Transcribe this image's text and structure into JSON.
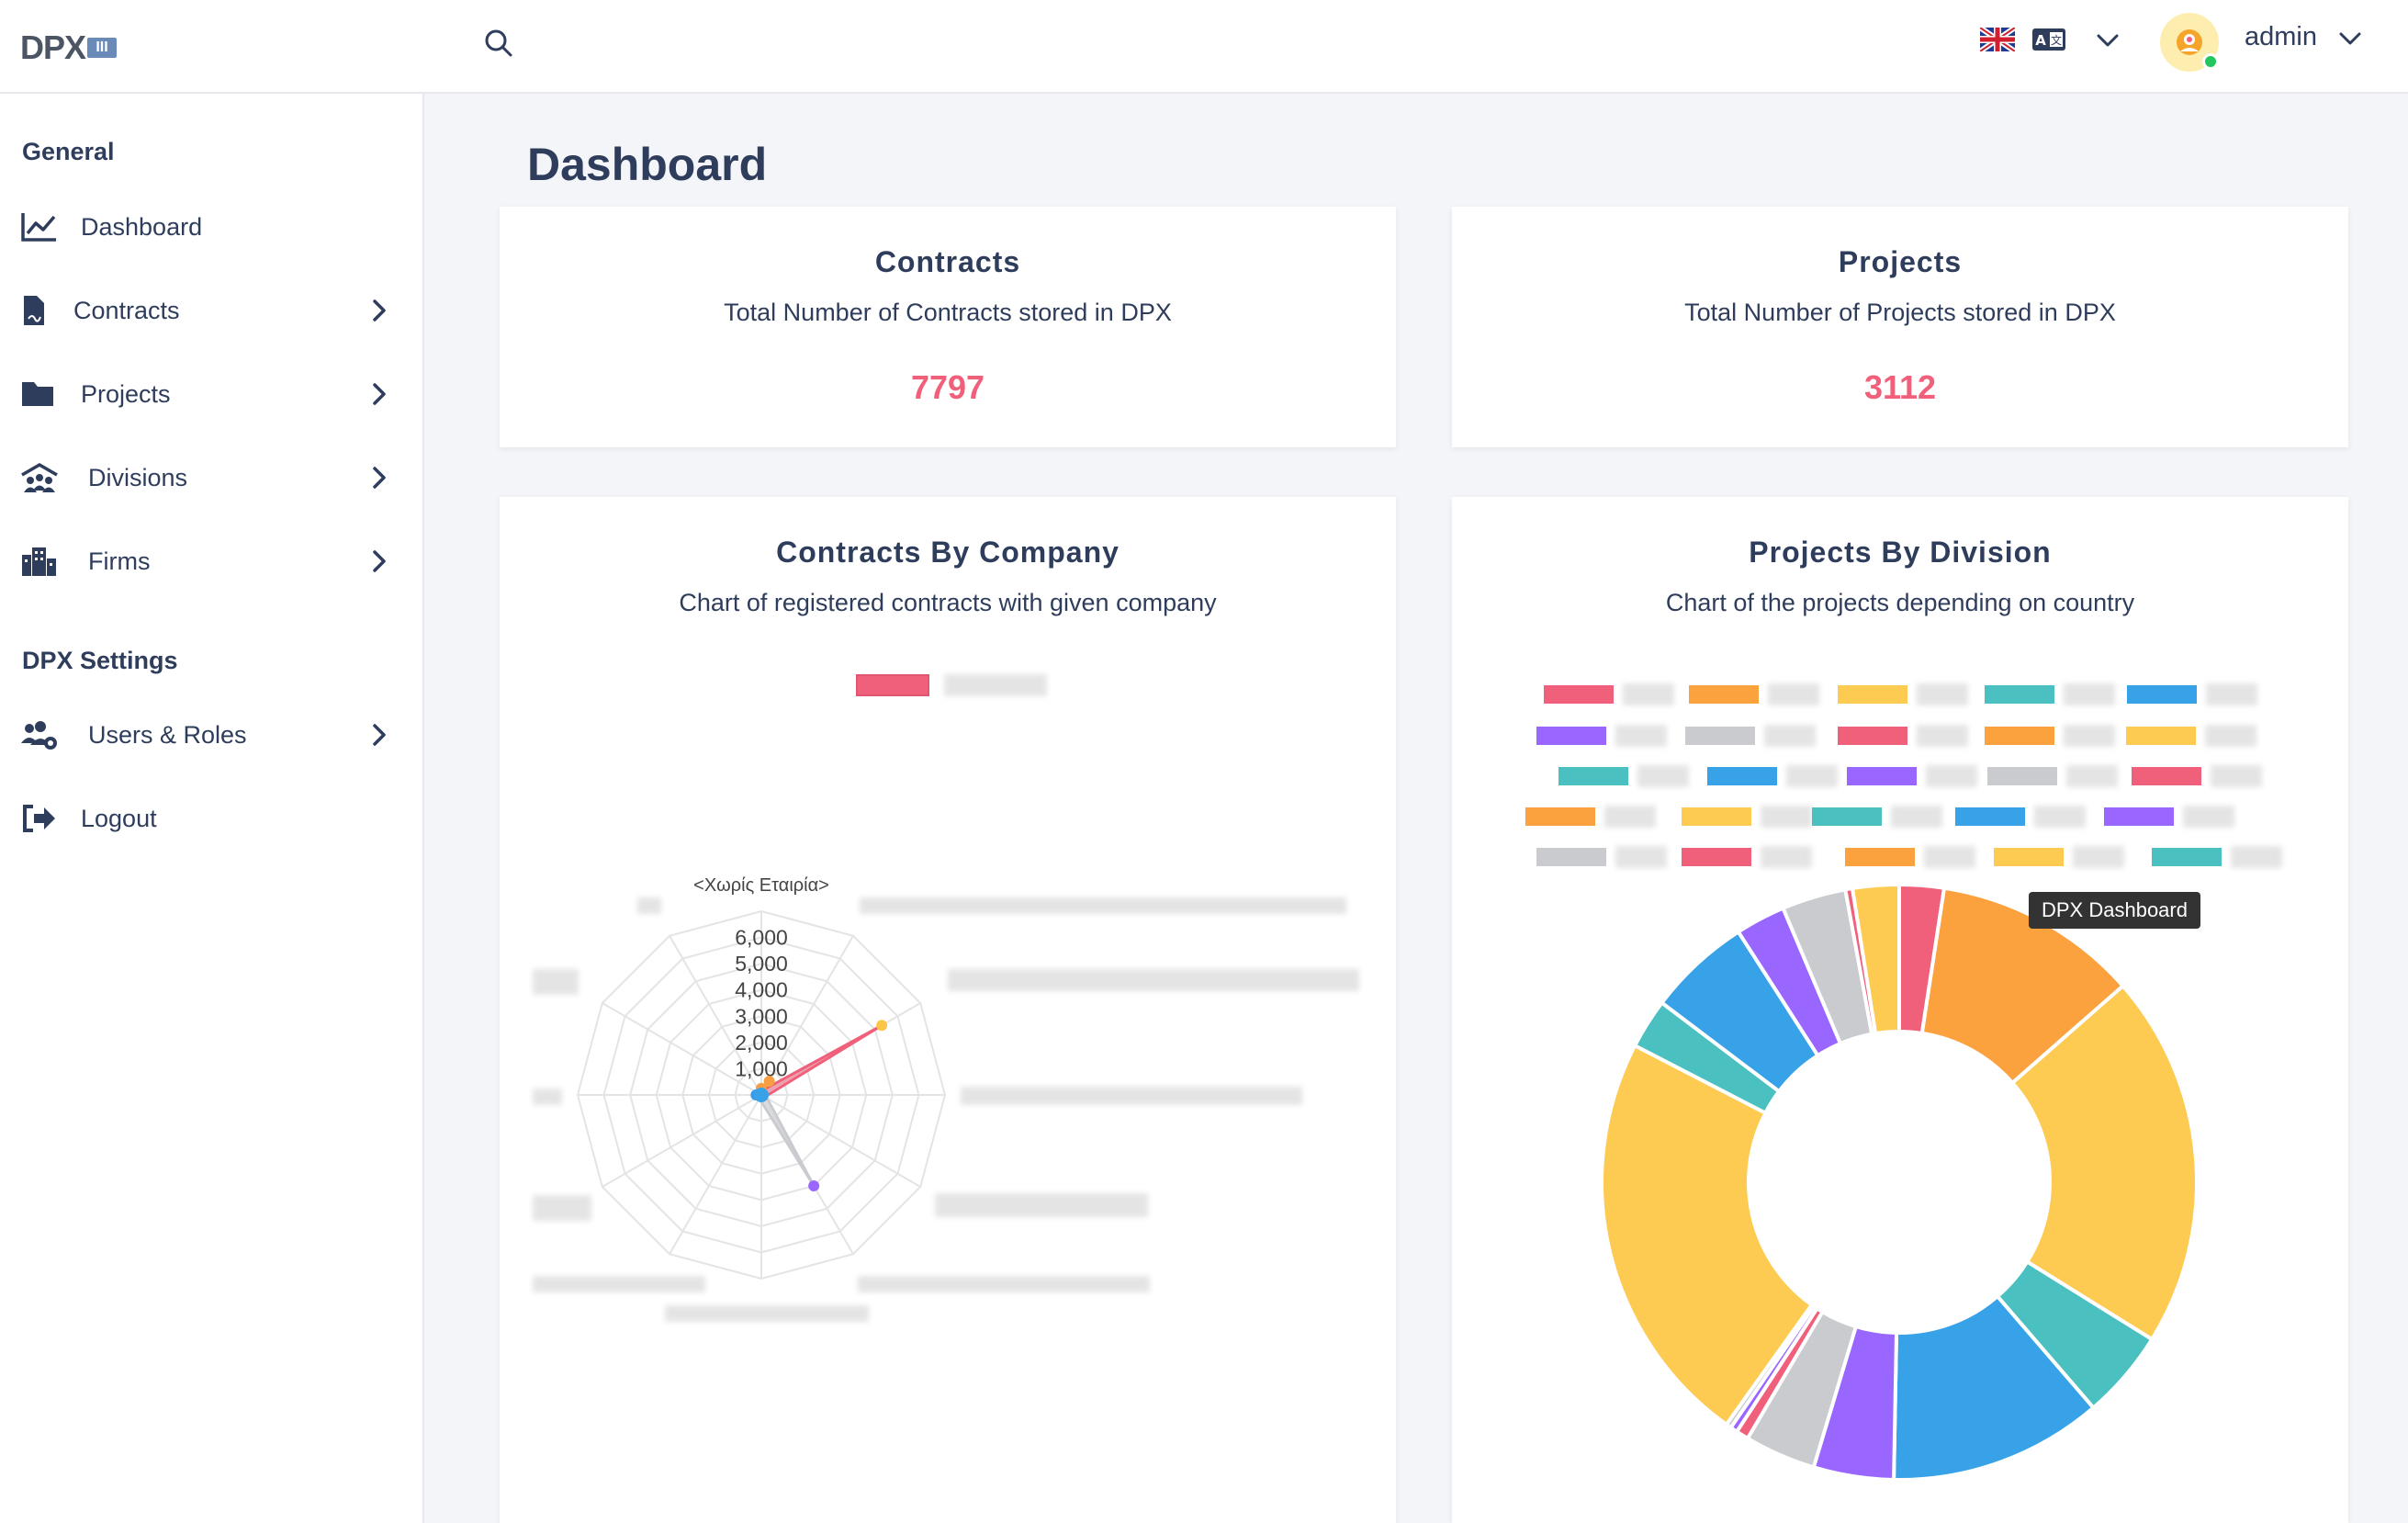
{
  "header": {
    "logo_text": "DPX",
    "logo_numeral": "III",
    "user_name": "admin",
    "status_color": "#22c55e"
  },
  "sidebar": {
    "general_title": "General",
    "settings_title": "DPX Settings",
    "items": [
      {
        "label": "Dashboard",
        "icon": "chart-line-icon"
      },
      {
        "label": "Contracts",
        "icon": "file-contract-icon"
      },
      {
        "label": "Projects",
        "icon": "folder-icon"
      },
      {
        "label": "Divisions",
        "icon": "people-roof-icon"
      },
      {
        "label": "Firms",
        "icon": "building-icon"
      },
      {
        "label": "Users & Roles",
        "icon": "users-cog-icon"
      },
      {
        "label": "Logout",
        "icon": "logout-icon"
      }
    ]
  },
  "main": {
    "page_title": "Dashboard",
    "contracts_card": {
      "title": "Contracts",
      "subtitle": "Total Number of Contracts stored in DPX",
      "value": "7797"
    },
    "projects_card": {
      "title": "Projects",
      "subtitle": "Total Number of Projects stored in DPX",
      "value": "3112"
    },
    "contracts_chart_card": {
      "title": "Contracts By Company",
      "subtitle": "Chart of registered contracts with given company"
    },
    "projects_chart_card": {
      "title": "Projects By Division",
      "subtitle": "Chart of the projects depending on country",
      "tooltip": "DPX Dashboard"
    }
  },
  "chart_data": [
    {
      "type": "radar",
      "title": "Contracts By Company",
      "first_axis_label": "<Χωρίς Εταιρία>",
      "r_ticks": [
        "1,000",
        "2,000",
        "3,000",
        "4,000",
        "5,000",
        "6,000"
      ],
      "rmax": 7000,
      "axes_count": 12,
      "series": [
        {
          "color": "#f0607a",
          "points": [
            {
              "axis": 2,
              "value": 5300
            }
          ],
          "note": "labels blurred in original"
        },
        {
          "color": "#c9cbcf",
          "points": [
            {
              "axis": 5,
              "value": 4000
            }
          ]
        }
      ],
      "extra_points": [
        {
          "axis": 2,
          "value": 5300,
          "color": "#fbc547"
        },
        {
          "axis": 5,
          "value": 4000,
          "color": "#9966ff"
        },
        {
          "axis": 0,
          "value": 250,
          "color": "#f59e42"
        },
        {
          "axis": 1,
          "value": 600,
          "color": "#f59e42"
        },
        {
          "axis": 9,
          "value": 200,
          "color": "#3b9ae8"
        }
      ]
    },
    {
      "type": "doughnut",
      "title": "Projects By Division",
      "palette": [
        "#f0607a",
        "#fba13e",
        "#fdca52",
        "#4bc0c0",
        "#38a2e8",
        "#9966ff",
        "#c9cbcf"
      ],
      "slices": [
        {
          "value": 2.5,
          "color": "#f0607a"
        },
        {
          "value": 11.5,
          "color": "#fba13e"
        },
        {
          "value": 21,
          "color": "#fdca52"
        },
        {
          "value": 5,
          "color": "#4bc0c0"
        },
        {
          "value": 12,
          "color": "#38a2e8"
        },
        {
          "value": 4.5,
          "color": "#9966ff"
        },
        {
          "value": 4,
          "color": "#c9cbcf"
        },
        {
          "value": 0.7,
          "color": "#f0607a"
        },
        {
          "value": 0.4,
          "color": "#9966ff"
        },
        {
          "value": 0.3,
          "color": "#c9cbcf"
        },
        {
          "value": 23.5,
          "color": "#fdca52"
        },
        {
          "value": 2.8,
          "color": "#4bc0c0"
        },
        {
          "value": 5.8,
          "color": "#38a2e8"
        },
        {
          "value": 2.8,
          "color": "#9966ff"
        },
        {
          "value": 3.6,
          "color": "#c9cbcf"
        },
        {
          "value": 0.4,
          "color": "#f0607a"
        },
        {
          "value": 2.6,
          "color": "#fdca52"
        }
      ],
      "legend_rows": [
        [
          "#f0607a",
          "#fba13e",
          "#fdca52",
          "#4bc0c0",
          "#38a2e8"
        ],
        [
          "#9966ff",
          "#c9cbcf",
          "#f0607a",
          "#fba13e",
          "#fdca52"
        ],
        [
          "#4bc0c0",
          "#38a2e8",
          "#9966ff",
          "#c9cbcf",
          "#f0607a"
        ],
        [
          "#fba13e",
          "#fdca52",
          "#4bc0c0",
          "#38a2e8",
          "#9966ff"
        ],
        [
          "#c9cbcf",
          "#f0607a",
          "#fba13e",
          "#fdca52",
          "#4bc0c0"
        ]
      ]
    }
  ]
}
